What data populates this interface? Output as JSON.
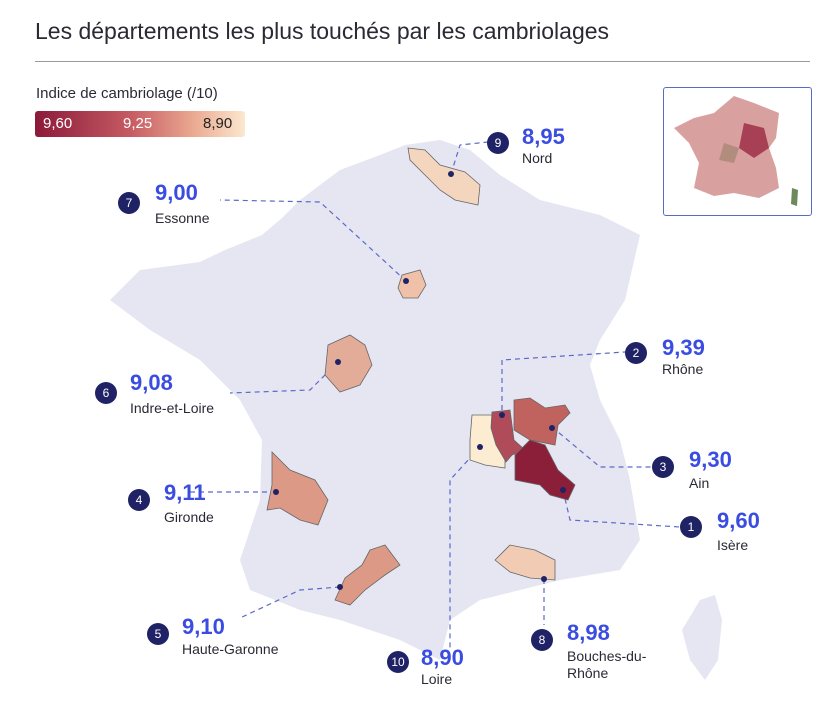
{
  "title": "Les départements les plus touchés par les cambriolages",
  "legend": {
    "title": "Indice de cambriolage (/10)",
    "high": "9,60",
    "mid": "9,25",
    "low": "8,90"
  },
  "colors": {
    "accent": "#3b4de0",
    "badge": "#1f2366",
    "land": "#e6e6f3"
  },
  "departments": [
    {
      "rank": "1",
      "value": "9,60",
      "name": "Isère",
      "color": "#8b1f3a"
    },
    {
      "rank": "2",
      "value": "9,39",
      "name": "Rhône",
      "color": "#b04c5a"
    },
    {
      "rank": "3",
      "value": "9,30",
      "name": "Ain",
      "color": "#c0625e"
    },
    {
      "rank": "4",
      "value": "9,11",
      "name": "Gironde",
      "color": "#dc9a86"
    },
    {
      "rank": "5",
      "value": "9,10",
      "name": "Haute-Garonne",
      "color": "#dc9a86"
    },
    {
      "rank": "6",
      "value": "9,08",
      "name": "Indre-et-Loire",
      "color": "#e3ac98"
    },
    {
      "rank": "7",
      "value": "9,00",
      "name": "Essonne",
      "color": "#eec1a8"
    },
    {
      "rank": "8",
      "value": "8,98",
      "name": "Bouches-du-Rhône",
      "color": "#f1cbb3"
    },
    {
      "rank": "9",
      "value": "8,95",
      "name": "Nord",
      "color": "#f4d6bf"
    },
    {
      "rank": "10",
      "value": "8,90",
      "name": "Loire",
      "color": "#fcecd2"
    }
  ]
}
